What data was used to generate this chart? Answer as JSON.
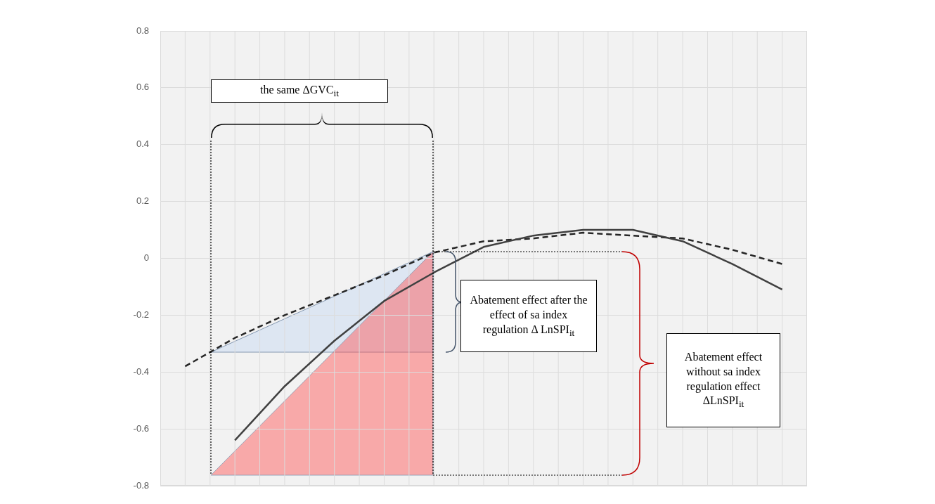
{
  "chart_data": {
    "type": "line",
    "categories": [
      null,
      null,
      null,
      null,
      null,
      null,
      null,
      null,
      null,
      null,
      null,
      null,
      null
    ],
    "series": [
      {
        "color": "#404040",
        "line_style": "solid",
        "values": [
          null,
          -0.64,
          -0.45,
          -0.29,
          -0.15,
          -0.05,
          0.04,
          0.08,
          0.1,
          0.1,
          0.06,
          -0.02,
          -0.11
        ]
      },
      {
        "color": "#262626",
        "line_style": "dashed",
        "values": [
          -0.38,
          -0.28,
          -0.2,
          -0.13,
          -0.06,
          0.02,
          0.06,
          0.07,
          0.09,
          0.08,
          0.07,
          0.03,
          -0.02
        ]
      }
    ],
    "ylim": [
      -0.8,
      0.8
    ],
    "yticks": [
      -0.8,
      -0.6,
      -0.4,
      -0.2,
      0,
      0.2,
      0.4,
      0.6,
      0.8
    ],
    "grid": true,
    "legend": false,
    "marker": "none",
    "tick_labels": "y",
    "annotations": [
      "the same ΔGVC$_{it}$",
      "Abatement effect after the effect of sa index regulation Δ LnSPI$_{it}$",
      "Abatement effect without sa index regulation effect ΔLnSPI$_{it}$"
    ]
  }
}
